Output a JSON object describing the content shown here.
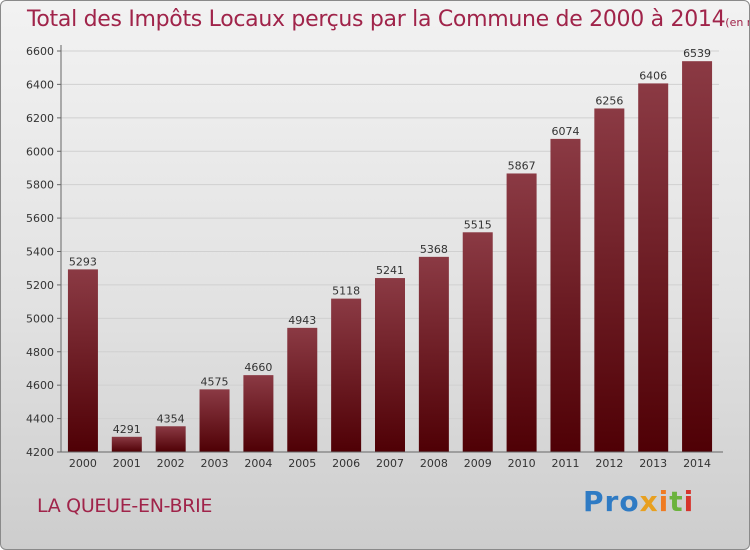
{
  "header": {
    "title": "Total des Impôts Locaux perçus par la Commune de 2000 à 2014",
    "unit": "(en milliers d'€)"
  },
  "footer": {
    "commune": "LA QUEUE-EN-BRIE",
    "logo": [
      "Pro",
      "x",
      "i",
      "t",
      "i"
    ]
  },
  "colors": {
    "bar_top": "#8b3a44",
    "bar_bottom": "#4f0005",
    "title": "#a0244a"
  },
  "chart_data": {
    "type": "bar",
    "title": "Total des Impôts Locaux perçus par la Commune de 2000 à 2014",
    "xlabel": "",
    "ylabel": "(en milliers d'€)",
    "ylim": [
      4200,
      6600
    ],
    "yticks": [
      4200,
      4400,
      4600,
      4800,
      5000,
      5200,
      5400,
      5600,
      5800,
      6000,
      6200,
      6400,
      6600
    ],
    "grid": true,
    "categories": [
      "2000",
      "2001",
      "2002",
      "2003",
      "2004",
      "2005",
      "2006",
      "2007",
      "2008",
      "2009",
      "2010",
      "2011",
      "2012",
      "2013",
      "2014"
    ],
    "values": [
      5293,
      4291,
      4354,
      4575,
      4660,
      4943,
      5118,
      5241,
      5368,
      5515,
      5867,
      6074,
      6256,
      6406,
      6539
    ]
  }
}
